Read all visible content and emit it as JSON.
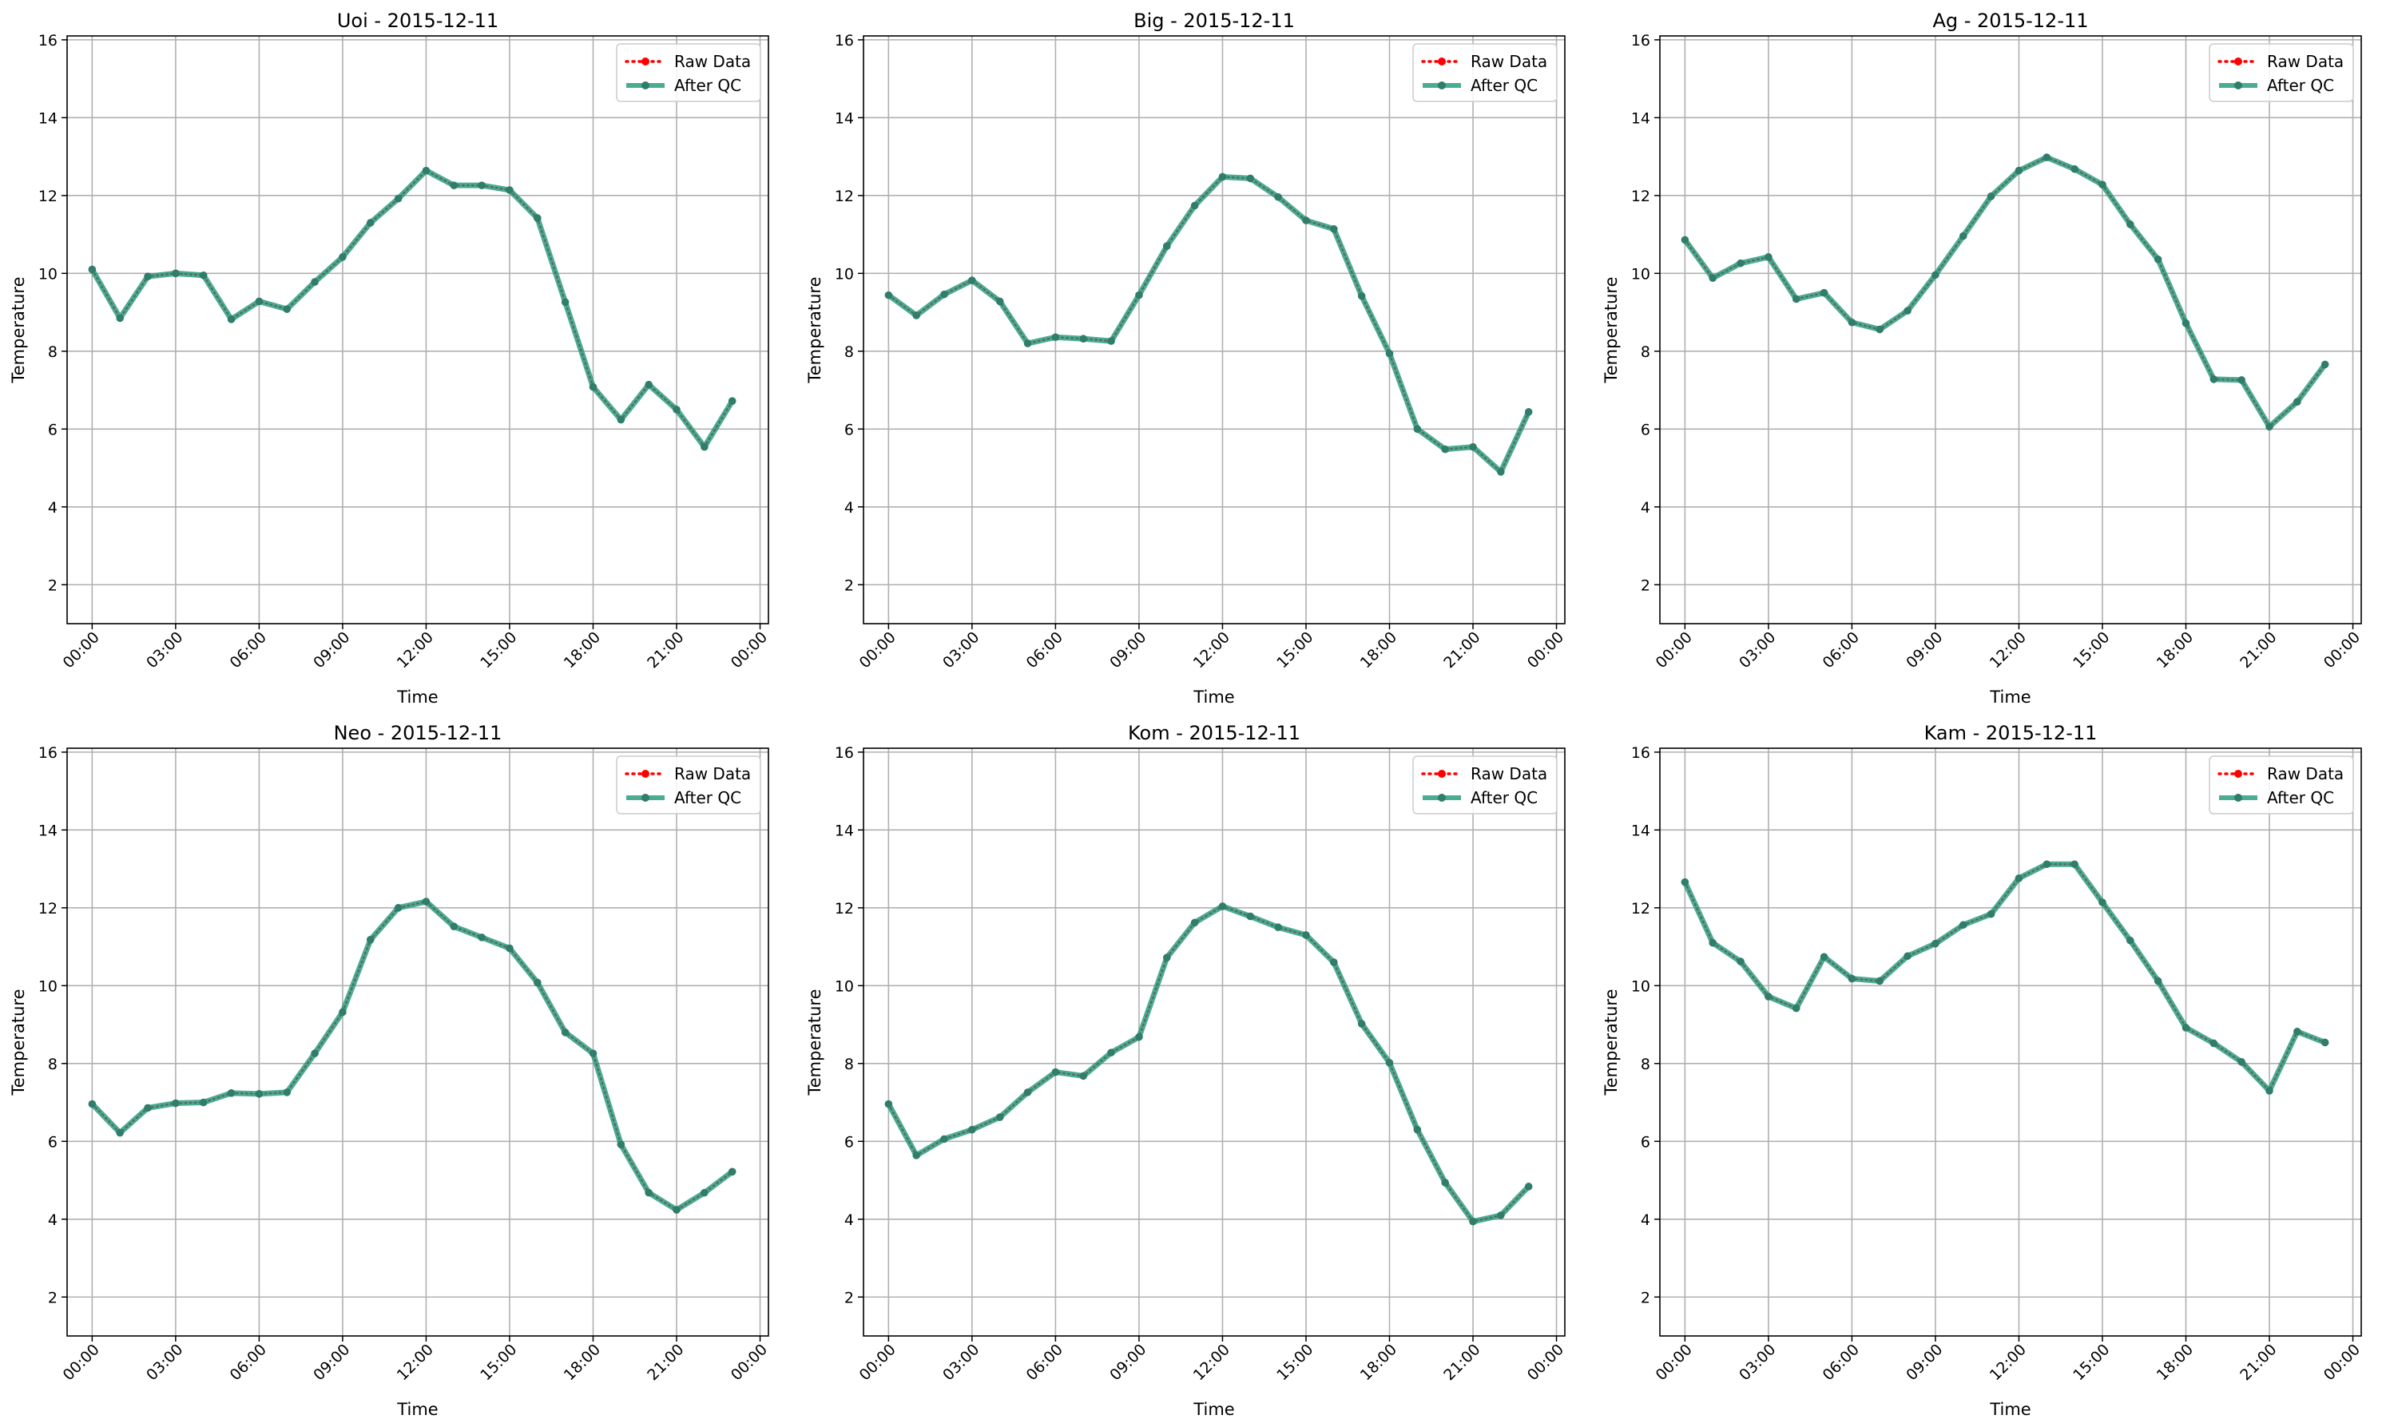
{
  "chart_data": [
    {
      "type": "line",
      "title": "Uoi - 2015-12-11",
      "xlabel": "Time",
      "ylabel": "Temperature",
      "ylim": [
        1.0,
        16.1
      ],
      "yticks": [
        2,
        4,
        6,
        8,
        10,
        12,
        14,
        16
      ],
      "xlim": [
        -0.9,
        24.3
      ],
      "xtick_labels": [
        "00:00",
        "03:00",
        "06:00",
        "09:00",
        "12:00",
        "15:00",
        "18:00",
        "21:00",
        "00:00"
      ],
      "x_hours": [
        0,
        1,
        2,
        3,
        4,
        5,
        6,
        7,
        8,
        9,
        10,
        11,
        12,
        13,
        14,
        15,
        16,
        17,
        18,
        19,
        20,
        21,
        22,
        23
      ],
      "grid": true,
      "legend_position": "upper right",
      "series": [
        {
          "name": "Raw Data",
          "color": "#ff0000",
          "style": "dotted",
          "values": [
            10.1,
            8.85,
            9.92,
            10.0,
            9.95,
            8.82,
            9.28,
            9.08,
            9.78,
            10.42,
            11.3,
            11.92,
            12.64,
            12.26,
            12.26,
            12.14,
            11.42,
            9.26,
            7.08,
            6.24,
            7.14,
            6.5,
            5.54,
            6.72
          ]
        },
        {
          "name": "After QC",
          "color": "#2a9d7c",
          "style": "solid",
          "values": [
            10.1,
            8.85,
            9.92,
            10.0,
            9.95,
            8.82,
            9.28,
            9.08,
            9.78,
            10.42,
            11.3,
            11.92,
            12.64,
            12.26,
            12.26,
            12.14,
            11.42,
            9.26,
            7.08,
            6.24,
            7.14,
            6.5,
            5.54,
            6.72
          ]
        }
      ]
    },
    {
      "type": "line",
      "title": "Big - 2015-12-11",
      "xlabel": "Time",
      "ylabel": "Temperature",
      "ylim": [
        1.0,
        16.1
      ],
      "yticks": [
        2,
        4,
        6,
        8,
        10,
        12,
        14,
        16
      ],
      "xlim": [
        -0.9,
        24.3
      ],
      "xtick_labels": [
        "00:00",
        "03:00",
        "06:00",
        "09:00",
        "12:00",
        "15:00",
        "18:00",
        "21:00",
        "00:00"
      ],
      "x_hours": [
        0,
        1,
        2,
        3,
        4,
        5,
        6,
        7,
        8,
        9,
        10,
        11,
        12,
        13,
        14,
        15,
        16,
        17,
        18,
        19,
        20,
        21,
        22,
        23
      ],
      "grid": true,
      "legend_position": "upper right",
      "series": [
        {
          "name": "Raw Data",
          "color": "#ff0000",
          "style": "dotted",
          "values": [
            9.44,
            8.92,
            9.46,
            9.82,
            9.28,
            8.2,
            8.36,
            8.32,
            8.26,
            9.44,
            10.7,
            11.74,
            12.48,
            12.44,
            11.96,
            11.36,
            11.14,
            9.42,
            7.94,
            6.0,
            5.48,
            5.54,
            4.9,
            6.44
          ]
        },
        {
          "name": "After QC",
          "color": "#2a9d7c",
          "style": "solid",
          "values": [
            9.44,
            8.92,
            9.46,
            9.82,
            9.28,
            8.2,
            8.36,
            8.32,
            8.26,
            9.44,
            10.7,
            11.74,
            12.48,
            12.44,
            11.96,
            11.36,
            11.14,
            9.42,
            7.94,
            6.0,
            5.48,
            5.54,
            4.9,
            6.44
          ]
        }
      ]
    },
    {
      "type": "line",
      "title": "Ag - 2015-12-11",
      "xlabel": "Time",
      "ylabel": "Temperature",
      "ylim": [
        1.0,
        16.1
      ],
      "yticks": [
        2,
        4,
        6,
        8,
        10,
        12,
        14,
        16
      ],
      "xlim": [
        -0.9,
        24.3
      ],
      "xtick_labels": [
        "00:00",
        "03:00",
        "06:00",
        "09:00",
        "12:00",
        "15:00",
        "18:00",
        "21:00",
        "00:00"
      ],
      "x_hours": [
        0,
        1,
        2,
        3,
        4,
        5,
        6,
        7,
        8,
        9,
        10,
        11,
        12,
        13,
        14,
        15,
        16,
        17,
        18,
        19,
        20,
        21,
        22,
        23
      ],
      "grid": true,
      "legend_position": "upper right",
      "series": [
        {
          "name": "Raw Data",
          "color": "#ff0000",
          "style": "dotted",
          "values": [
            10.86,
            9.88,
            10.26,
            10.42,
            9.34,
            9.5,
            8.74,
            8.56,
            9.04,
            9.96,
            10.96,
            11.98,
            12.64,
            12.98,
            12.68,
            12.28,
            11.26,
            10.36,
            8.72,
            7.28,
            7.26,
            6.06,
            6.7,
            7.66
          ]
        },
        {
          "name": "After QC",
          "color": "#2a9d7c",
          "style": "solid",
          "values": [
            10.86,
            9.88,
            10.26,
            10.42,
            9.34,
            9.5,
            8.74,
            8.56,
            9.04,
            9.96,
            10.96,
            11.98,
            12.64,
            12.98,
            12.68,
            12.28,
            11.26,
            10.36,
            8.72,
            7.28,
            7.26,
            6.06,
            6.7,
            7.66
          ]
        }
      ]
    },
    {
      "type": "line",
      "title": "Neo - 2015-12-11",
      "xlabel": "Time",
      "ylabel": "Temperature",
      "ylim": [
        1.0,
        16.1
      ],
      "yticks": [
        2,
        4,
        6,
        8,
        10,
        12,
        14,
        16
      ],
      "xlim": [
        -0.9,
        24.3
      ],
      "xtick_labels": [
        "00:00",
        "03:00",
        "06:00",
        "09:00",
        "12:00",
        "15:00",
        "18:00",
        "21:00",
        "00:00"
      ],
      "x_hours": [
        0,
        1,
        2,
        3,
        4,
        5,
        6,
        7,
        8,
        9,
        10,
        11,
        12,
        13,
        14,
        15,
        16,
        17,
        18,
        19,
        20,
        21,
        22,
        23
      ],
      "grid": true,
      "legend_position": "upper right",
      "series": [
        {
          "name": "Raw Data",
          "color": "#ff0000",
          "style": "dotted",
          "values": [
            6.96,
            6.22,
            6.86,
            6.98,
            7.0,
            7.24,
            7.22,
            7.26,
            8.26,
            9.32,
            11.18,
            12.0,
            12.16,
            11.52,
            11.24,
            10.96,
            10.08,
            8.8,
            8.26,
            5.92,
            4.68,
            4.24,
            4.68,
            5.22
          ]
        },
        {
          "name": "After QC",
          "color": "#2a9d7c",
          "style": "solid",
          "values": [
            6.96,
            6.22,
            6.86,
            6.98,
            7.0,
            7.24,
            7.22,
            7.26,
            8.26,
            9.32,
            11.18,
            12.0,
            12.16,
            11.52,
            11.24,
            10.96,
            10.08,
            8.8,
            8.26,
            5.92,
            4.68,
            4.24,
            4.68,
            5.22
          ]
        }
      ]
    },
    {
      "type": "line",
      "title": "Kom - 2015-12-11",
      "xlabel": "Time",
      "ylabel": "Temperature",
      "ylim": [
        1.0,
        16.1
      ],
      "yticks": [
        2,
        4,
        6,
        8,
        10,
        12,
        14,
        16
      ],
      "xlim": [
        -0.9,
        24.3
      ],
      "xtick_labels": [
        "00:00",
        "03:00",
        "06:00",
        "09:00",
        "12:00",
        "15:00",
        "18:00",
        "21:00",
        "00:00"
      ],
      "x_hours": [
        0,
        1,
        2,
        3,
        4,
        5,
        6,
        7,
        8,
        9,
        10,
        11,
        12,
        13,
        14,
        15,
        16,
        17,
        18,
        19,
        20,
        21,
        22,
        23
      ],
      "grid": true,
      "legend_position": "upper right",
      "series": [
        {
          "name": "Raw Data",
          "color": "#ff0000",
          "style": "dotted",
          "values": [
            6.96,
            5.64,
            6.06,
            6.3,
            6.62,
            7.26,
            7.78,
            7.68,
            8.28,
            8.68,
            10.72,
            11.62,
            12.04,
            11.78,
            11.5,
            11.3,
            10.6,
            9.02,
            8.02,
            6.3,
            4.94,
            3.94,
            4.1,
            4.84
          ]
        },
        {
          "name": "After QC",
          "color": "#2a9d7c",
          "style": "solid",
          "values": [
            6.96,
            5.64,
            6.06,
            6.3,
            6.62,
            7.26,
            7.78,
            7.68,
            8.28,
            8.68,
            10.72,
            11.62,
            12.04,
            11.78,
            11.5,
            11.3,
            10.6,
            9.02,
            8.02,
            6.3,
            4.94,
            3.94,
            4.1,
            4.84
          ]
        }
      ]
    },
    {
      "type": "line",
      "title": "Kam - 2015-12-11",
      "xlabel": "Time",
      "ylabel": "Temperature",
      "ylim": [
        1.0,
        16.1
      ],
      "yticks": [
        2,
        4,
        6,
        8,
        10,
        12,
        14,
        16
      ],
      "xlim": [
        -0.9,
        24.3
      ],
      "xtick_labels": [
        "00:00",
        "03:00",
        "06:00",
        "09:00",
        "12:00",
        "15:00",
        "18:00",
        "21:00",
        "00:00"
      ],
      "x_hours": [
        0,
        1,
        2,
        3,
        4,
        5,
        6,
        7,
        8,
        9,
        10,
        11,
        12,
        13,
        14,
        15,
        16,
        17,
        18,
        19,
        20,
        21,
        22,
        23
      ],
      "grid": true,
      "legend_position": "upper right",
      "series": [
        {
          "name": "Raw Data",
          "color": "#ff0000",
          "style": "dotted",
          "values": [
            12.66,
            11.1,
            10.62,
            9.72,
            9.42,
            10.74,
            10.18,
            10.12,
            10.76,
            11.08,
            11.56,
            11.84,
            12.76,
            13.12,
            13.12,
            12.14,
            11.16,
            10.12,
            8.92,
            8.52,
            8.04,
            7.3,
            8.82,
            8.54
          ]
        },
        {
          "name": "After QC",
          "color": "#2a9d7c",
          "style": "solid",
          "values": [
            12.66,
            11.1,
            10.62,
            9.72,
            9.42,
            10.74,
            10.18,
            10.12,
            10.76,
            11.08,
            11.56,
            11.84,
            12.76,
            13.12,
            13.12,
            12.14,
            11.16,
            10.12,
            8.92,
            8.52,
            8.04,
            7.3,
            8.82,
            8.54
          ]
        }
      ]
    }
  ]
}
